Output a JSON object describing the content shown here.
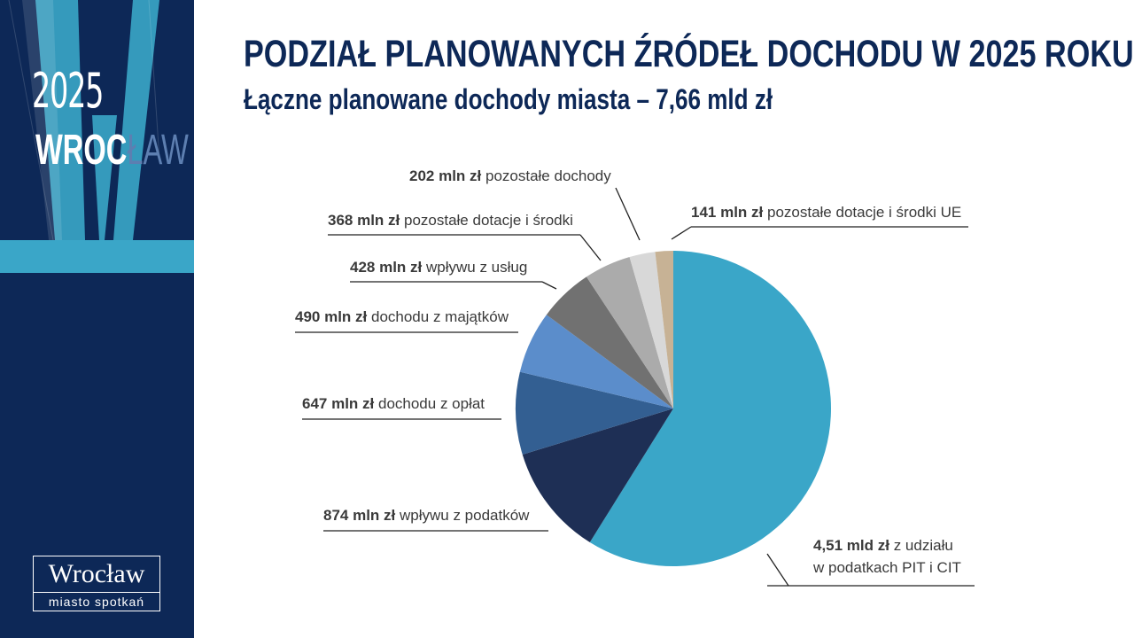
{
  "branding": {
    "year": "2025",
    "city_word_main": "WROC",
    "city_word_tail": "ŁAW",
    "logo_name": "Wrocław",
    "logo_tagline": "miasto spotkań",
    "colors": {
      "panel": "#0d2857",
      "accent": "#3aa6c8"
    }
  },
  "header": {
    "title": "PODZIAŁ PLANOWANYCH ŹRÓDEŁ DOCHODU W 2025 ROKU",
    "subtitle": "Łączne planowane dochody miasta – 7,66 mld zł"
  },
  "chart_data": {
    "type": "pie",
    "title": "PODZIAŁ PLANOWANYCH ŹRÓDEŁ DOCHODU W 2025 ROKU",
    "subtitle": "Łączne planowane dochody miasta – 7,66 mld zł",
    "unit": "mln zł",
    "start": "12 o'clock",
    "direction": "clockwise",
    "slices": [
      {
        "value_label": "4,51 mld zł",
        "label": "z udziału",
        "label2": "w podatkach PIT i CIT",
        "value": 4510,
        "color": "#3aa6c8"
      },
      {
        "value_label": "874 mln zł",
        "label": "wpływu z podatków",
        "value": 874,
        "color": "#1e2f55"
      },
      {
        "value_label": "647 mln zł",
        "label": "dochodu z opłat",
        "value": 647,
        "color": "#335f92"
      },
      {
        "value_label": "490 mln zł",
        "label": "dochodu z majątków",
        "value": 490,
        "color": "#5b8dcb"
      },
      {
        "value_label": "428 mln zł",
        "label": "wpływu z usług",
        "value": 428,
        "color": "#717171"
      },
      {
        "value_label": "368 mln zł",
        "label": "pozostałe dotacje i środki",
        "value": 368,
        "color": "#ababab"
      },
      {
        "value_label": "202 mln zł",
        "label": "pozostałe dochody",
        "value": 202,
        "color": "#d8d8d8"
      },
      {
        "value_label": "141 mln zł",
        "label": "pozostałe dotacje i środki UE",
        "value": 141,
        "color": "#c7b295"
      }
    ]
  }
}
